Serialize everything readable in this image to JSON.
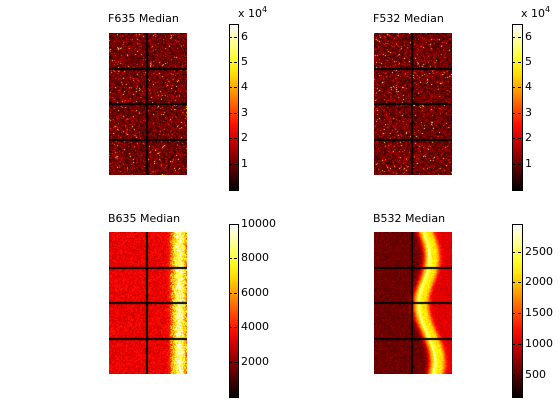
{
  "chart_data": [
    {
      "type": "heatmap",
      "title": "F635 Median",
      "colormap": "hot",
      "texture": "speckle",
      "colorbar": {
        "scale_label": "x 10",
        "scale_exponent": "4",
        "ticks": [
          "1",
          "2",
          "3",
          "4",
          "5",
          "6"
        ],
        "tick_values": [
          1,
          2,
          3,
          4,
          5,
          6
        ],
        "range": [
          0,
          6.5
        ]
      },
      "grid": {
        "rows": 4,
        "cols": 2
      }
    },
    {
      "type": "heatmap",
      "title": "F532 Median",
      "colormap": "hot",
      "texture": "speckle",
      "colorbar": {
        "scale_label": "x 10",
        "scale_exponent": "4",
        "ticks": [
          "1",
          "2",
          "3",
          "4",
          "5",
          "6"
        ],
        "tick_values": [
          1,
          2,
          3,
          4,
          5,
          6
        ],
        "range": [
          0,
          6.5
        ]
      },
      "grid": {
        "rows": 4,
        "cols": 2
      }
    },
    {
      "type": "heatmap",
      "title": "B635 Median",
      "colormap": "hot",
      "texture": "background-edge",
      "colorbar": {
        "scale_label": "",
        "scale_exponent": "",
        "ticks": [
          "2000",
          "4000",
          "6000",
          "8000",
          "10000"
        ],
        "tick_values": [
          2000,
          4000,
          6000,
          8000,
          10000
        ],
        "range": [
          0,
          10000
        ]
      },
      "grid": {
        "rows": 4,
        "cols": 2
      }
    },
    {
      "type": "heatmap",
      "title": "B532 Median",
      "colormap": "hot",
      "texture": "background-streak",
      "colorbar": {
        "scale_label": "",
        "scale_exponent": "",
        "ticks": [
          "500",
          "1000",
          "1500",
          "2000",
          "2500"
        ],
        "tick_values": [
          500,
          1000,
          1500,
          2000,
          2500
        ],
        "range": [
          150,
          2950
        ]
      },
      "grid": {
        "rows": 4,
        "cols": 2
      }
    }
  ]
}
